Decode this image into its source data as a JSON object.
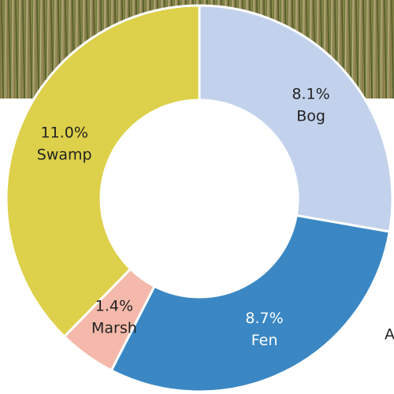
{
  "chart_data": {
    "type": "donut",
    "categories": [
      "Bog",
      "Fen",
      "Marsh",
      "Swamp"
    ],
    "values": [
      8.1,
      8.7,
      1.4,
      11.0
    ],
    "value_labels": [
      "8.1%",
      "8.7%",
      "1.4%",
      "11.0%"
    ],
    "colors": [
      "#c3d2ec",
      "#3a87c4",
      "#f4b9aa",
      "#ddd04a"
    ],
    "label_colors": [
      "#222222",
      "#ffffff",
      "#222222",
      "#222222"
    ],
    "cropped_label": "A"
  }
}
